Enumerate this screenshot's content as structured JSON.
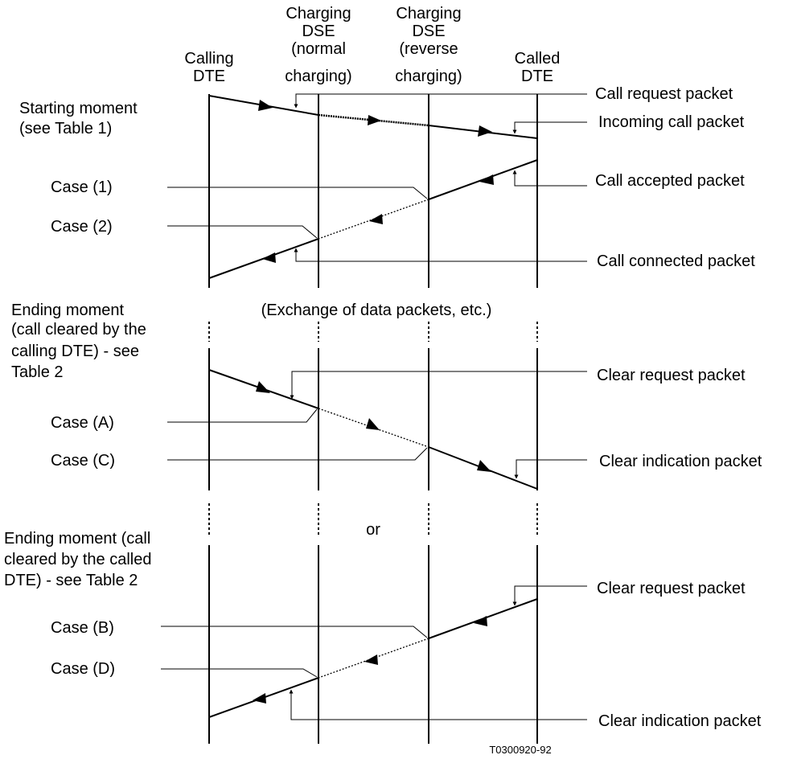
{
  "headers": {
    "calling": [
      "Calling",
      "DTE"
    ],
    "dse_normal": [
      "Charging",
      "DSE",
      "(normal",
      "charging)"
    ],
    "dse_reverse": [
      "Charging",
      "DSE",
      "(reverse",
      "charging)"
    ],
    "called": [
      "Called",
      "DTE"
    ]
  },
  "sections": {
    "starting": [
      "Starting moment",
      "(see Table 1)"
    ],
    "ending_calling": [
      "Ending moment",
      "(call cleared by the",
      "calling DTE) - see",
      "Table 2"
    ],
    "ending_called": [
      "Ending moment (call",
      "cleared by the called",
      "DTE) - see Table 2"
    ]
  },
  "cases": {
    "c1": "Case (1)",
    "c2": "Case (2)",
    "cA": "Case (A)",
    "cC": "Case (C)",
    "cB": "Case (B)",
    "cD": "Case (D)"
  },
  "packets": {
    "call_request": "Call request packet",
    "incoming_call": "Incoming call packet",
    "call_accepted": "Call accepted packet",
    "call_connected": "Call connected packet",
    "clear_request_1": "Clear request packet",
    "clear_indication_1": "Clear indication packet",
    "clear_request_2": "Clear request packet",
    "clear_indication_2": "Clear indication packet"
  },
  "notes": {
    "exchange": "(Exchange of data packets, etc.)",
    "or": "or"
  },
  "figure_code": "T0300920-92"
}
